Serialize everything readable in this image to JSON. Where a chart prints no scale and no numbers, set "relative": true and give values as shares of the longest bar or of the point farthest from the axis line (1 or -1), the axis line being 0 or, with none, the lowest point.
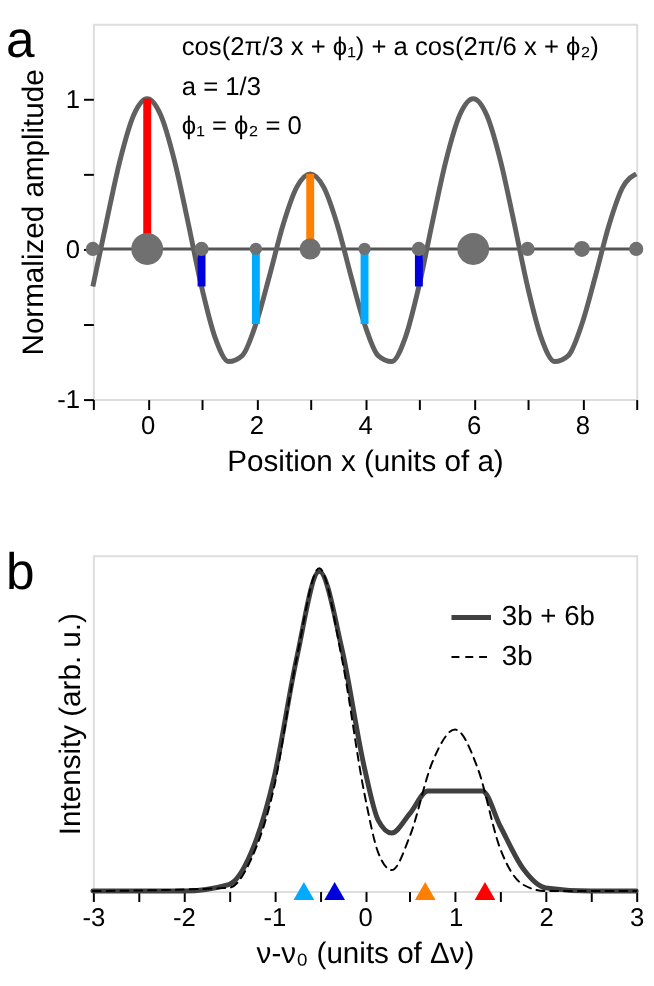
{
  "chart_data": [
    {
      "type": "line",
      "title": "a",
      "xlabel": "Position x (units of a)",
      "ylabel": "Normalized amplitude",
      "xlim": [
        -1,
        9
      ],
      "xticks": [
        {
          "value": -1,
          "label": null
        },
        0,
        {
          "value": 1,
          "label": null
        },
        2,
        {
          "value": 3,
          "label": null
        },
        4,
        {
          "value": 5,
          "label": null
        },
        6,
        {
          "value": 7,
          "label": null
        },
        8,
        {
          "value": 9,
          "label": null
        }
      ],
      "ylim": [
        -1,
        1.5
      ],
      "yticks": [
        -1,
        {
          "value": -0.5,
          "label": null
        },
        0,
        {
          "value": 0.5,
          "label": null
        },
        1
      ],
      "grid": false,
      "legend": false,
      "annotations": [
        "cos(2π/3 x + ϕ₁) + a cos(2π/6 x + ϕ₂)",
        "a = 1/3",
        "ϕ₁ = ϕ₂ = 0"
      ],
      "ref_lines": [
        {
          "axis": "y",
          "value": 0,
          "color": "#555555"
        }
      ],
      "series": [
        {
          "type": "line",
          "color": "#606060",
          "x": [
            -1,
            -0.75,
            -0.5,
            -0.25,
            0,
            0.25,
            0.5,
            0.75,
            1,
            1.25,
            1.5,
            1.75,
            2,
            2.25,
            2.5,
            2.75,
            3,
            3.25,
            3.5,
            3.75,
            4,
            4.25,
            4.5,
            4.75,
            5,
            5.25,
            5.5,
            5.75,
            6,
            6.25,
            6.5,
            6.75,
            7,
            7.25,
            7.5,
            7.75,
            8,
            8.25,
            8.5,
            8.75,
            9
          ],
          "values": [
            -0.25,
            0.18,
            0.59,
            0.89,
            1,
            0.89,
            0.59,
            0.18,
            -0.25,
            -0.59,
            -0.75,
            -0.71,
            -0.5,
            -0.18,
            0.16,
            0.41,
            0.5,
            0.41,
            0.16,
            -0.18,
            -0.5,
            -0.71,
            -0.75,
            -0.59,
            -0.25,
            0.18,
            0.59,
            0.89,
            1,
            0.89,
            0.59,
            0.18,
            -0.25,
            -0.59,
            -0.75,
            -0.71,
            -0.5,
            -0.18,
            0.16,
            0.41,
            0.5
          ]
        },
        {
          "type": "bar",
          "x": [
            0,
            1,
            2,
            3,
            4,
            5
          ],
          "values": [
            1,
            -0.25,
            -0.5,
            0.5,
            -0.5,
            -0.25
          ],
          "colors": [
            "#ff0000",
            "#0000dd",
            "#00aaff",
            "#ff8000",
            "#00aaff",
            "#0000dd"
          ]
        },
        {
          "type": "bubble",
          "color": "#707070",
          "x": [
            -1,
            0,
            1,
            2,
            3,
            4,
            5,
            6,
            7,
            8,
            9
          ],
          "values": [
            0,
            0,
            0,
            0,
            0,
            0,
            0,
            0,
            0,
            0,
            0
          ],
          "sizes": [
            0.2,
            1,
            0.2,
            0.15,
            0.44,
            0.15,
            0.2,
            1,
            0.2,
            0.25,
            0.2
          ]
        }
      ]
    },
    {
      "type": "line",
      "title": "b",
      "xlabel": "ν-ν₀ (units of Δν)",
      "ylabel": "Intensity (arb. u.)",
      "relative": true,
      "xlim": [
        -3,
        3
      ],
      "xticks": [
        -3,
        {
          "value": -2.5,
          "label": null
        },
        -2,
        {
          "value": -1.5,
          "label": null
        },
        -1,
        {
          "value": -0.5,
          "label": null
        },
        0,
        {
          "value": 0.5,
          "label": null
        },
        1,
        {
          "value": 1.5,
          "label": null
        },
        2,
        {
          "value": 2.5,
          "label": null
        },
        3
      ],
      "grid": false,
      "legend": "top right",
      "series": [
        {
          "name": "3b + 6b",
          "color": "#404040",
          "line_style": "solid",
          "x": [
            -3,
            -2,
            -1.5,
            -1.25,
            -1,
            -0.75,
            -0.5,
            -0.25,
            0,
            0.15,
            0.3,
            0.5,
            0.7,
            1,
            1.3,
            1.5,
            1.75,
            2,
            2.5,
            3
          ],
          "values": [
            0,
            0,
            0.02,
            0.12,
            0.35,
            0.72,
            0.99,
            0.75,
            0.38,
            0.22,
            0.18,
            0.24,
            0.31,
            0.31,
            0.31,
            0.2,
            0.07,
            0.01,
            0,
            0
          ]
        },
        {
          "name": "3b",
          "color": "#000000",
          "line_style": "dashed",
          "x": [
            -3,
            -1.5,
            -1.25,
            -1,
            -0.75,
            -0.5,
            -0.25,
            0,
            0.15,
            0.3,
            0.5,
            0.75,
            1,
            1.25,
            1.5,
            1.75,
            2,
            3
          ],
          "values": [
            0,
            0.01,
            0.1,
            0.32,
            0.72,
            1,
            0.72,
            0.3,
            0.12,
            0.065,
            0.17,
            0.4,
            0.5,
            0.38,
            0.13,
            0.02,
            0,
            0
          ]
        },
        {
          "type": "scatter",
          "marker": "triangle",
          "x": [
            -0.67,
            -0.33,
            0.67,
            1.33
          ],
          "values": [
            0,
            0,
            0,
            0
          ],
          "colors": [
            "#00aaff",
            "#0000dd",
            "#ff8000",
            "#ff0000"
          ]
        }
      ]
    }
  ]
}
